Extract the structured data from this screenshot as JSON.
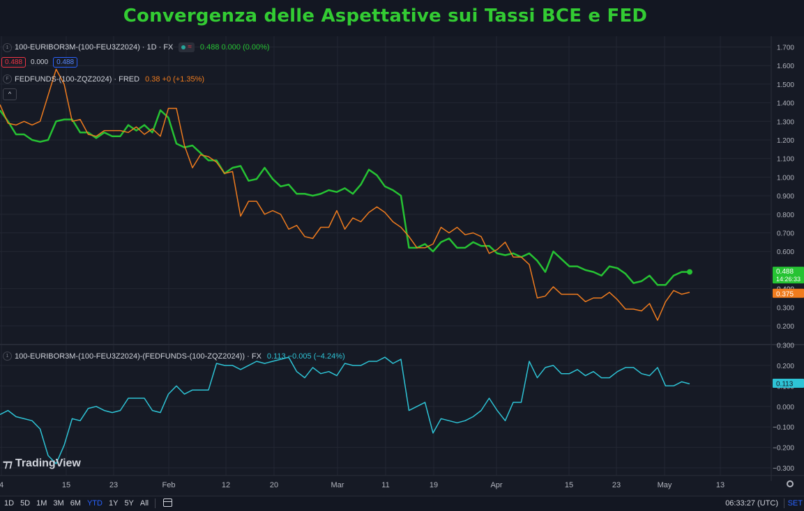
{
  "title": "Convergenza delle Aspettative sui Tassi BCE e FED",
  "legend": {
    "main": {
      "index": "1",
      "symbol": "100-EURIBOR3M-(100-FEU3Z2024) · 1D · FX",
      "values": "0.488  0.000 (0.00%)",
      "sell": "0.488",
      "spread": "0.000",
      "buy": "0.488"
    },
    "fed": {
      "index": "F",
      "symbol": "FEDFUNDS-(100-ZQZ2024) · FRED",
      "values": "0.38  +0  (+1.35%)"
    },
    "sub": {
      "index": "1",
      "symbol": "100-EURIBOR3M-(100-FEU3Z2024)-(FEDFUNDS-(100-ZQZ2024)) · FX",
      "values": "0.113  −0.005 (−4.24%)"
    },
    "collapse": "^"
  },
  "logo": "TradingView",
  "bottom": {
    "ranges": [
      "1D",
      "5D",
      "1M",
      "3M",
      "6M",
      "YTD",
      "1Y",
      "5Y",
      "All"
    ],
    "active": "YTD",
    "clock": "06:33:27 (UTC)",
    "settings": "SET"
  },
  "colors": {
    "green": "#26c333",
    "orange": "#f07c1e",
    "cyan": "#2ec4d6",
    "sell": "#f23645",
    "buy": "#2962ff"
  },
  "chart_data": [
    {
      "type": "line",
      "title": "",
      "x": [
        "Jan 4",
        "Jan 5",
        "Jan 8",
        "Jan 9",
        "Jan 10",
        "Jan 11",
        "Jan 12",
        "Jan 15",
        "Jan 16",
        "Jan 17",
        "Jan 18",
        "Jan 19",
        "Jan 22",
        "Jan 23",
        "Jan 24",
        "Jan 25",
        "Jan 26",
        "Jan 29",
        "Jan 30",
        "Jan 31",
        "Feb 1",
        "Feb 2",
        "Feb 5",
        "Feb 6",
        "Feb 7",
        "Feb 8",
        "Feb 9",
        "Feb 12",
        "Feb 13",
        "Feb 14",
        "Feb 15",
        "Feb 16",
        "Feb 19",
        "Feb 20",
        "Feb 21",
        "Feb 22",
        "Feb 23",
        "Feb 26",
        "Feb 27",
        "Feb 28",
        "Feb 29",
        "Mar 1",
        "Mar 4",
        "Mar 5",
        "Mar 6",
        "Mar 7",
        "Mar 8",
        "Mar 11",
        "Mar 12",
        "Mar 13",
        "Mar 14",
        "Mar 15",
        "Mar 18",
        "Mar 19",
        "Mar 20",
        "Mar 21",
        "Mar 22",
        "Mar 25",
        "Mar 26",
        "Mar 27",
        "Mar 28",
        "Apr 1",
        "Apr 2",
        "Apr 3",
        "Apr 4",
        "Apr 5",
        "Apr 8",
        "Apr 9",
        "Apr 10",
        "Apr 11",
        "Apr 12",
        "Apr 15",
        "Apr 16",
        "Apr 17",
        "Apr 18",
        "Apr 19",
        "Apr 22",
        "Apr 23",
        "Apr 24",
        "Apr 25",
        "Apr 26",
        "Apr 29",
        "Apr 30",
        "May 1",
        "May 2",
        "May 3",
        "May 6"
      ],
      "series": [
        {
          "name": "100-EURIBOR3M-(100-FEU3Z2024)",
          "color": "#26c333",
          "values": [
            1.36,
            1.3,
            1.23,
            1.23,
            1.2,
            1.19,
            1.2,
            1.3,
            1.31,
            1.31,
            1.24,
            1.24,
            1.21,
            1.24,
            1.22,
            1.22,
            1.28,
            1.25,
            1.28,
            1.24,
            1.36,
            1.32,
            1.18,
            1.16,
            1.17,
            1.13,
            1.09,
            1.09,
            1.02,
            1.05,
            1.06,
            0.98,
            0.99,
            1.05,
            0.99,
            0.95,
            0.96,
            0.91,
            0.91,
            0.9,
            0.91,
            0.93,
            0.92,
            0.94,
            0.91,
            0.96,
            1.04,
            1.01,
            0.95,
            0.93,
            0.9,
            0.62,
            0.62,
            0.64,
            0.6,
            0.65,
            0.67,
            0.62,
            0.62,
            0.65,
            0.63,
            0.63,
            0.59,
            0.58,
            0.59,
            0.57,
            0.59,
            0.55,
            0.49,
            0.6,
            0.56,
            0.52,
            0.52,
            0.5,
            0.49,
            0.47,
            0.52,
            0.51,
            0.48,
            0.43,
            0.44,
            0.47,
            0.42,
            0.42,
            0.47,
            0.49,
            0.49
          ]
        },
        {
          "name": "FEDFUNDS-(100-ZQZ2024)",
          "color": "#f07c1e",
          "values": [
            1.39,
            1.29,
            1.28,
            1.3,
            1.28,
            1.3,
            1.44,
            1.58,
            1.5,
            1.3,
            1.31,
            1.23,
            1.22,
            1.25,
            1.25,
            1.25,
            1.24,
            1.27,
            1.23,
            1.26,
            1.22,
            1.37,
            1.37,
            1.17,
            1.05,
            1.12,
            1.11,
            1.08,
            1.02,
            1.03,
            0.79,
            0.87,
            0.87,
            0.8,
            0.82,
            0.8,
            0.72,
            0.74,
            0.68,
            0.67,
            0.73,
            0.73,
            0.82,
            0.72,
            0.78,
            0.76,
            0.81,
            0.84,
            0.81,
            0.76,
            0.73,
            0.68,
            0.62,
            0.62,
            0.64,
            0.73,
            0.7,
            0.73,
            0.69,
            0.7,
            0.68,
            0.59,
            0.61,
            0.65,
            0.57,
            0.57,
            0.53,
            0.35,
            0.36,
            0.41,
            0.37,
            0.37,
            0.37,
            0.33,
            0.35,
            0.35,
            0.38,
            0.34,
            0.29,
            0.29,
            0.28,
            0.32,
            0.23,
            0.33,
            0.39,
            0.37,
            0.38
          ]
        }
      ],
      "ylim": [
        0.15,
        1.7
      ],
      "yticks": [
        "1.700",
        "1.600",
        "1.500",
        "1.400",
        "1.300",
        "1.200",
        "1.100",
        "1.000",
        "0.900",
        "0.800",
        "0.700",
        "0.600",
        "0.400",
        "0.300",
        "0.200"
      ],
      "price_labels": [
        {
          "value": "0.488",
          "sub": "14:26:33",
          "color": "#26c333"
        },
        {
          "value": "0.400",
          "color": "#787b86"
        },
        {
          "value": "0.375",
          "color": "#f07c1e"
        }
      ],
      "grid": true
    },
    {
      "type": "line",
      "title": "",
      "series": [
        {
          "name": "100-EURIBOR3M-(100-FEU3Z2024)-(FEDFUNDS-(100-ZQZ2024))",
          "color": "#2ec4d6",
          "values": [
            -0.04,
            -0.02,
            -0.05,
            -0.06,
            -0.07,
            -0.11,
            -0.24,
            -0.28,
            -0.19,
            -0.06,
            -0.07,
            -0.01,
            0.0,
            -0.02,
            -0.03,
            -0.02,
            0.04,
            0.04,
            0.04,
            -0.02,
            -0.03,
            0.06,
            0.1,
            0.06,
            0.08,
            0.08,
            0.08,
            0.21,
            0.2,
            0.2,
            0.18,
            0.2,
            0.22,
            0.21,
            0.22,
            0.23,
            0.24,
            0.17,
            0.14,
            0.19,
            0.16,
            0.17,
            0.15,
            0.21,
            0.2,
            0.2,
            0.22,
            0.22,
            0.24,
            0.21,
            0.23,
            -0.02,
            0.0,
            0.02,
            -0.13,
            -0.06,
            -0.07,
            -0.08,
            -0.07,
            -0.05,
            -0.02,
            0.04,
            -0.02,
            -0.07,
            0.02,
            0.02,
            0.22,
            0.14,
            0.19,
            0.2,
            0.16,
            0.16,
            0.18,
            0.15,
            0.17,
            0.14,
            0.14,
            0.17,
            0.19,
            0.19,
            0.16,
            0.15,
            0.19,
            0.1,
            0.1,
            0.12,
            0.11
          ]
        }
      ],
      "ylim": [
        -0.31,
        0.3
      ],
      "yticks": [
        "0.300",
        "0.200",
        "0.100",
        "0.000",
        "−0.100",
        "−0.200",
        "−0.300"
      ],
      "price_labels": [
        {
          "value": "0.113",
          "color": "#2ec4d6"
        }
      ],
      "grid": true
    }
  ],
  "xaxis_ticks": [
    "4",
    "15",
    "23",
    "Feb",
    "12",
    "20",
    "Mar",
    "11",
    "19",
    "Apr",
    "15",
    "23",
    "May",
    "13"
  ]
}
